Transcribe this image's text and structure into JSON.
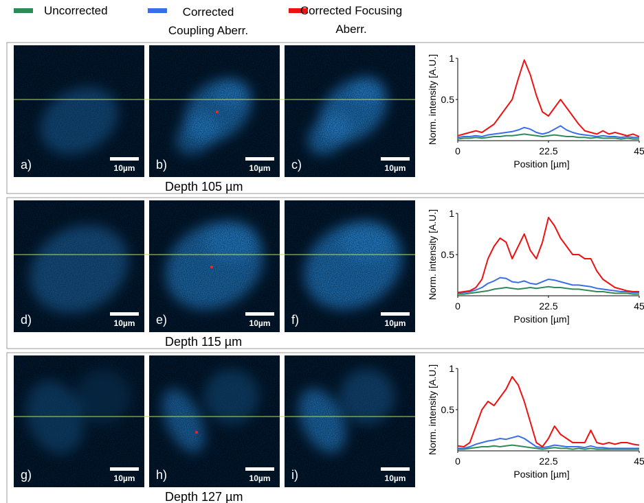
{
  "chart_data": [
    {
      "type": "line",
      "caption": "Depth 105 µm",
      "panel_labels": [
        "a)",
        "b)",
        "c)"
      ],
      "scale_bar_labels": [
        "10µm",
        "10µm",
        "10µm"
      ],
      "xlabel": "Position [µm]",
      "ylabel": "Norm. intensity [A.U.]",
      "xlim": [
        0,
        45
      ],
      "xticks": [
        0,
        22.5,
        45
      ],
      "ylim": [
        0,
        1
      ],
      "yticks": [
        0.5,
        1
      ],
      "x": [
        0,
        1.5,
        3,
        4.5,
        6,
        7.5,
        9,
        10.5,
        12,
        13.5,
        15,
        16.5,
        18,
        19.5,
        21,
        22.5,
        24,
        25.5,
        27,
        28.5,
        30,
        31.5,
        33,
        34.5,
        36,
        37.5,
        39,
        40.5,
        42,
        43.5,
        45
      ],
      "series": [
        {
          "name": "Uncorrected",
          "color": "#2e8b57",
          "values": [
            0.02,
            0.03,
            0.03,
            0.04,
            0.03,
            0.04,
            0.05,
            0.05,
            0.06,
            0.06,
            0.07,
            0.08,
            0.07,
            0.06,
            0.05,
            0.06,
            0.07,
            0.06,
            0.05,
            0.05,
            0.04,
            0.04,
            0.03,
            0.04,
            0.03,
            0.03,
            0.03,
            0.02,
            0.03,
            0.02,
            0.02
          ]
        },
        {
          "name": "Corrected Coupling Aberr.",
          "color": "#3a6ee8",
          "values": [
            0.04,
            0.05,
            0.05,
            0.06,
            0.05,
            0.07,
            0.08,
            0.09,
            0.1,
            0.11,
            0.13,
            0.16,
            0.14,
            0.1,
            0.08,
            0.1,
            0.14,
            0.18,
            0.13,
            0.1,
            0.08,
            0.07,
            0.06,
            0.05,
            0.06,
            0.05,
            0.05,
            0.04,
            0.05,
            0.04,
            0.04
          ]
        },
        {
          "name": "Corrected Focusing Aberr.",
          "color": "#ee1111",
          "values": [
            0.06,
            0.08,
            0.1,
            0.12,
            0.1,
            0.15,
            0.2,
            0.3,
            0.4,
            0.5,
            0.75,
            0.98,
            0.8,
            0.55,
            0.35,
            0.3,
            0.4,
            0.5,
            0.4,
            0.3,
            0.2,
            0.12,
            0.1,
            0.08,
            0.12,
            0.08,
            0.1,
            0.08,
            0.06,
            0.08,
            0.05
          ]
        }
      ]
    },
    {
      "type": "line",
      "caption": "Depth 115 µm",
      "panel_labels": [
        "d)",
        "e)",
        "f)"
      ],
      "scale_bar_labels": [
        "10µm",
        "10µm",
        "10µm"
      ],
      "xlabel": "Position [µm]",
      "ylabel": "Norm. intensity [A.U.]",
      "xlim": [
        0,
        45
      ],
      "xticks": [
        0,
        22.5,
        45
      ],
      "ylim": [
        0,
        1
      ],
      "yticks": [
        0.5,
        1
      ],
      "x": [
        0,
        1.5,
        3,
        4.5,
        6,
        7.5,
        9,
        10.5,
        12,
        13.5,
        15,
        16.5,
        18,
        19.5,
        21,
        22.5,
        24,
        25.5,
        27,
        28.5,
        30,
        31.5,
        33,
        34.5,
        36,
        37.5,
        39,
        40.5,
        42,
        43.5,
        45
      ],
      "series": [
        {
          "color": "#2e8b57",
          "values": [
            0.02,
            0.02,
            0.03,
            0.04,
            0.05,
            0.06,
            0.08,
            0.09,
            0.1,
            0.09,
            0.08,
            0.09,
            0.1,
            0.09,
            0.1,
            0.11,
            0.1,
            0.1,
            0.09,
            0.08,
            0.08,
            0.07,
            0.06,
            0.05,
            0.05,
            0.04,
            0.03,
            0.03,
            0.03,
            0.02,
            0.02
          ]
        },
        {
          "color": "#3a6ee8",
          "values": [
            0.03,
            0.04,
            0.05,
            0.07,
            0.1,
            0.15,
            0.18,
            0.22,
            0.21,
            0.17,
            0.16,
            0.18,
            0.15,
            0.14,
            0.17,
            0.2,
            0.19,
            0.17,
            0.15,
            0.13,
            0.13,
            0.12,
            0.11,
            0.09,
            0.08,
            0.07,
            0.06,
            0.05,
            0.05,
            0.04,
            0.04
          ]
        },
        {
          "color": "#ee1111",
          "values": [
            0.04,
            0.05,
            0.06,
            0.1,
            0.2,
            0.45,
            0.6,
            0.7,
            0.65,
            0.45,
            0.6,
            0.75,
            0.55,
            0.45,
            0.65,
            0.95,
            0.85,
            0.7,
            0.6,
            0.5,
            0.5,
            0.45,
            0.45,
            0.3,
            0.2,
            0.15,
            0.1,
            0.08,
            0.06,
            0.05,
            0.05
          ]
        }
      ]
    },
    {
      "type": "line",
      "caption": "Depth 127 µm",
      "panel_labels": [
        "g)",
        "h)",
        "i)"
      ],
      "scale_bar_labels": [
        "10µm",
        "10µm",
        "10µm"
      ],
      "xlabel": "Position [µm]",
      "ylabel": "Norm. intensity [A.U.]",
      "xlim": [
        0,
        45
      ],
      "xticks": [
        0,
        22.5,
        45
      ],
      "ylim": [
        0,
        1
      ],
      "yticks": [
        0.5,
        1
      ],
      "x": [
        0,
        1.5,
        3,
        4.5,
        6,
        7.5,
        9,
        10.5,
        12,
        13.5,
        15,
        16.5,
        18,
        19.5,
        21,
        22.5,
        24,
        25.5,
        27,
        28.5,
        30,
        31.5,
        33,
        34.5,
        36,
        37.5,
        39,
        40.5,
        42,
        43.5,
        45
      ],
      "series": [
        {
          "color": "#2e8b57",
          "values": [
            0.02,
            0.02,
            0.03,
            0.04,
            0.05,
            0.05,
            0.06,
            0.05,
            0.06,
            0.07,
            0.06,
            0.05,
            0.04,
            0.03,
            0.02,
            0.03,
            0.04,
            0.03,
            0.03,
            0.02,
            0.03,
            0.02,
            0.03,
            0.02,
            0.02,
            0.02,
            0.02,
            0.02,
            0.02,
            0.02,
            0.02
          ]
        },
        {
          "color": "#3a6ee8",
          "values": [
            0.03,
            0.03,
            0.05,
            0.08,
            0.1,
            0.12,
            0.13,
            0.15,
            0.14,
            0.16,
            0.18,
            0.15,
            0.1,
            0.05,
            0.04,
            0.05,
            0.07,
            0.06,
            0.05,
            0.05,
            0.05,
            0.04,
            0.06,
            0.04,
            0.04,
            0.03,
            0.03,
            0.03,
            0.03,
            0.03,
            0.03
          ]
        },
        {
          "color": "#ee1111",
          "values": [
            0.06,
            0.05,
            0.1,
            0.3,
            0.5,
            0.6,
            0.55,
            0.65,
            0.75,
            0.9,
            0.8,
            0.6,
            0.35,
            0.1,
            0.05,
            0.15,
            0.3,
            0.2,
            0.15,
            0.1,
            0.1,
            0.1,
            0.25,
            0.1,
            0.08,
            0.1,
            0.08,
            0.1,
            0.1,
            0.08,
            0.07
          ]
        }
      ]
    }
  ]
}
